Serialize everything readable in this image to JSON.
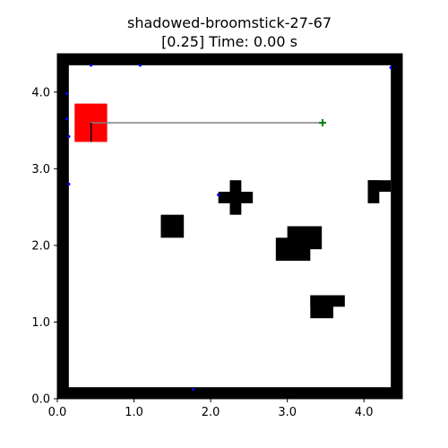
{
  "title": {
    "line1": "shadowed-broomstick-27-67",
    "line2": "[0.25] Time: 0.00 s"
  },
  "chart_data": {
    "type": "scatter",
    "xlim": [
      0.0,
      4.5
    ],
    "ylim": [
      0.0,
      4.5
    ],
    "x_ticks": [
      {
        "value": 0.0,
        "label": "0.0"
      },
      {
        "value": 1.0,
        "label": "1.0"
      },
      {
        "value": 2.0,
        "label": "2.0"
      },
      {
        "value": 3.0,
        "label": "3.0"
      },
      {
        "value": 4.0,
        "label": "4.0"
      }
    ],
    "y_ticks": [
      {
        "value": 0.0,
        "label": "0.0"
      },
      {
        "value": 1.0,
        "label": "1.0"
      },
      {
        "value": 2.0,
        "label": "2.0"
      },
      {
        "value": 3.0,
        "label": "3.0"
      },
      {
        "value": 4.0,
        "label": "4.0"
      }
    ],
    "grid": false,
    "walls": [
      {
        "x": 0.0,
        "y": 0.0,
        "w": 4.5,
        "h": 0.15
      },
      {
        "x": 0.0,
        "y": 4.35,
        "w": 4.5,
        "h": 0.15
      },
      {
        "x": 0.0,
        "y": 0.0,
        "w": 0.15,
        "h": 4.5
      },
      {
        "x": 4.35,
        "y": 0.0,
        "w": 0.15,
        "h": 4.5
      }
    ],
    "obstacles": [
      {
        "x": 1.35,
        "y": 2.1,
        "w": 0.3,
        "h": 0.3
      },
      {
        "x": 2.25,
        "y": 2.4,
        "w": 0.15,
        "h": 0.45
      },
      {
        "x": 2.1,
        "y": 2.55,
        "w": 0.45,
        "h": 0.15
      },
      {
        "x": 3.0,
        "y": 1.95,
        "w": 0.45,
        "h": 0.3
      },
      {
        "x": 2.85,
        "y": 1.8,
        "w": 0.45,
        "h": 0.3
      },
      {
        "x": 3.3,
        "y": 1.05,
        "w": 0.3,
        "h": 0.3
      },
      {
        "x": 3.3,
        "y": 1.2,
        "w": 0.45,
        "h": 0.15
      },
      {
        "x": 4.05,
        "y": 2.55,
        "w": 0.15,
        "h": 0.3
      },
      {
        "x": 4.05,
        "y": 2.7,
        "w": 0.3,
        "h": 0.15
      }
    ],
    "agent": {
      "x": 0.225,
      "y": 3.35,
      "w": 0.425,
      "h": 0.5,
      "color": "#ff0000"
    },
    "path": [
      {
        "x": 0.44,
        "y": 3.35
      },
      {
        "x": 0.44,
        "y": 3.6
      },
      {
        "x": 3.46,
        "y": 3.6
      }
    ],
    "goal": {
      "x": 3.46,
      "y": 3.6,
      "color": "#008000"
    },
    "sensor_points": [
      {
        "x": 0.44,
        "y": 4.35
      },
      {
        "x": 1.08,
        "y": 4.35
      },
      {
        "x": 4.35,
        "y": 4.32
      },
      {
        "x": 0.12,
        "y": 3.98
      },
      {
        "x": 0.12,
        "y": 3.65
      },
      {
        "x": 0.15,
        "y": 3.42
      },
      {
        "x": 0.15,
        "y": 2.8
      },
      {
        "x": 2.1,
        "y": 2.66
      },
      {
        "x": 1.77,
        "y": 0.12
      }
    ],
    "colors": {
      "wall": "#000000",
      "obstacle": "#000000",
      "path": "#808080",
      "sensor": "#0000ff"
    }
  }
}
